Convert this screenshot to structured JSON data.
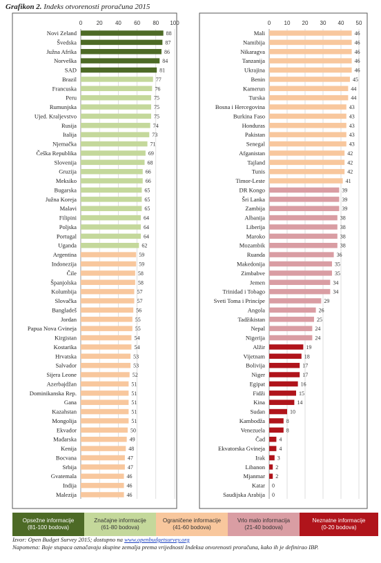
{
  "title": {
    "number": "Grafikon 2.",
    "text": "Indeks otvorenosti proračuna 2015"
  },
  "chart_data": [
    {
      "type": "bar",
      "orientation": "horizontal",
      "xlim": [
        0,
        100
      ],
      "ticks": [
        0,
        20,
        40,
        60,
        80,
        100
      ],
      "grid": true,
      "categories": [
        "Novi Zeland",
        "Švedska",
        "Južna Afrika",
        "Norveška",
        "SAD",
        "Brazil",
        "Francuska",
        "Peru",
        "Rumunjska",
        "Ujed. Kraljevstvo",
        "Rusija",
        "Italija",
        "Njemačka",
        "Češka Republika",
        "Slovenija",
        "Gruzija",
        "Meksiko",
        "Bugarska",
        "Južna Koreja",
        "Malavi",
        "Filipini",
        "Poljska",
        "Portugal",
        "Uganda",
        "Argentina",
        "Indonezija",
        "Čile",
        "Španjolska",
        "Kolumbija",
        "Slovačka",
        "Bangladeš",
        "Jordan",
        "Papua Nova Gvineja",
        "Kirgistan",
        "Kostarika",
        "Hrvatska",
        "Salvador",
        "Sijera Leone",
        "Azerbajdžan",
        "Dominikanska Rep.",
        "Gana",
        "Kazahstan",
        "Mongolija",
        "Ekvador",
        "Mađarska",
        "Kenija",
        "Bocvana",
        "Srbija",
        "Gvatemala",
        "Indija",
        "Malezija"
      ],
      "values": [
        88,
        87,
        86,
        84,
        81,
        77,
        76,
        75,
        75,
        75,
        74,
        73,
        71,
        69,
        68,
        66,
        66,
        65,
        65,
        65,
        64,
        64,
        64,
        62,
        59,
        59,
        58,
        58,
        57,
        57,
        56,
        55,
        55,
        54,
        54,
        53,
        53,
        52,
        51,
        51,
        51,
        51,
        51,
        50,
        49,
        48,
        47,
        47,
        46,
        46,
        46
      ]
    },
    {
      "type": "bar",
      "orientation": "horizontal",
      "xlim": [
        0,
        50
      ],
      "ticks": [
        0,
        10,
        20,
        30,
        40,
        50
      ],
      "grid": true,
      "categories": [
        "Mali",
        "Namibija",
        "Nikaragva",
        "Tanzanija",
        "Ukrajina",
        "Benin",
        "Kamerun",
        "Turska",
        "Bosna i Hercegovina",
        "Burkina Faso",
        "Honduras",
        "Pakistan",
        "Senegal",
        "Afganistan",
        "Tajland",
        "Tunis",
        "Timor-Leste",
        "DR Kongo",
        "Šri Lanka",
        "Zambija",
        "Albanija",
        "Liberija",
        "Maroko",
        "Mozambik",
        "Ruanda",
        "Makedonija",
        "Zimbabve",
        "Jemen",
        "Trinidad i Tobago",
        "Sveti Toma i Princípe",
        "Angola",
        "Tadžikistan",
        "Nepal",
        "Nigerija",
        "Alžir",
        "Vijetnam",
        "Bolivija",
        "Niger",
        "Egipat",
        "Fidži",
        "Kina",
        "Sudan",
        "Kambodža",
        "Venezuela",
        "Čad",
        "Ekvatorska Gvineja",
        "Irak",
        "Libanon",
        "Mjanmar",
        "Katar",
        "Saudijska Arabija"
      ],
      "values": [
        46,
        46,
        46,
        46,
        46,
        45,
        44,
        44,
        43,
        43,
        43,
        43,
        43,
        42,
        42,
        42,
        41,
        39,
        39,
        39,
        38,
        38,
        38,
        38,
        36,
        35,
        35,
        34,
        34,
        29,
        26,
        25,
        24,
        24,
        19,
        18,
        17,
        17,
        16,
        15,
        14,
        10,
        8,
        8,
        4,
        4,
        3,
        2,
        2,
        0,
        0
      ]
    }
  ],
  "groups": [
    {
      "label": "Opsežne informacije",
      "range": "(81-100 bodova)",
      "min": 81,
      "color": "#4d6a26",
      "text_color": "#ffffff"
    },
    {
      "label": "Značajne informacije",
      "range": "(61-80 bodova)",
      "min": 61,
      "color": "#c4d89b",
      "text_color": "#333333"
    },
    {
      "label": "Ograničene informacije",
      "range": "(41-60 bodova)",
      "min": 41,
      "color": "#f8c79d",
      "text_color": "#333333"
    },
    {
      "label": "Vrlo malo informacija",
      "range": "(21-40 bodova)",
      "min": 21,
      "color": "#d99da3",
      "text_color": "#333333"
    },
    {
      "label": "Neznatne informacije",
      "range": "(0-20 bodova)",
      "min": 0,
      "color": "#b0141b",
      "text_color": "#ffffff"
    }
  ],
  "source": {
    "prefix": "Izvor: Open Budget Survey 2015; dostupno na ",
    "link": "www.openbudgetsurvey.org",
    "note": "Napomena: Boje stupaca označavaju skupine zemalja prema vrijednosti Indeksa otvorenosti proračuna, kako ih je definirao IBP."
  }
}
